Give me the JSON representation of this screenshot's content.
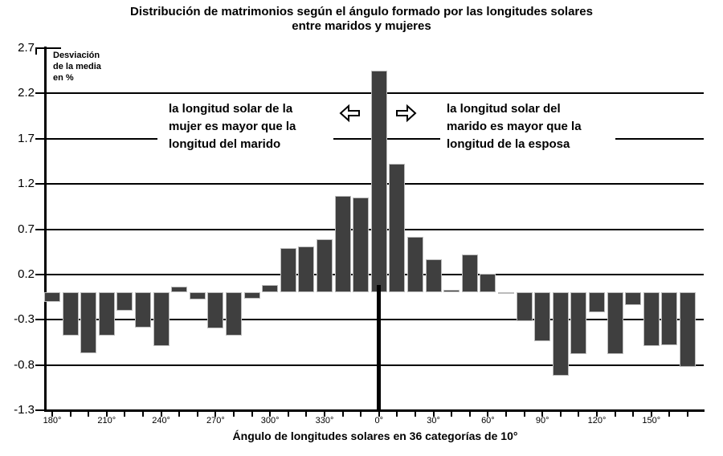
{
  "title": {
    "line1": "Distribución de matrimonios según el ángulo formado por las longitudes solares",
    "line2": "entre maridos y mujeres"
  },
  "y_axis": {
    "label_line1": "Desviación",
    "label_line2": "de la media",
    "label_line3": "en %",
    "tick_labels": [
      "2.7",
      "2.2",
      "1.7",
      "1.2",
      "0.7",
      "0.2",
      "-0.3",
      "-0.8",
      "-1.3"
    ],
    "tick_values": [
      2.7,
      2.2,
      1.7,
      1.2,
      0.7,
      0.2,
      -0.3,
      -0.8,
      -1.3
    ]
  },
  "x_axis": {
    "title": "Ángulo de longitudes solares en 36 categorías de 10°",
    "tick_labels": [
      "180°",
      "210°",
      "240°",
      "270°",
      "300°",
      "330°",
      "0°",
      "30°",
      "60°",
      "90°",
      "120°",
      "150°"
    ],
    "label_every_n_bars": 3
  },
  "annotations": {
    "left": {
      "line1": "la longitud solar de la",
      "line2": "mujer es mayor que la",
      "line3": "longitud del marido"
    },
    "right": {
      "line1": "la longitud solar del",
      "line2": "marido es mayor que la",
      "line3": "longitud de la esposa"
    }
  },
  "colors": {
    "bar": "#3f3f3f",
    "bar_border": "#bcbcbc",
    "axis": "#000000",
    "grid": "#000000",
    "background": "#ffffff"
  },
  "chart_data": {
    "type": "bar",
    "title": "Distribución de matrimonios según el ángulo formado por las longitudes solares entre maridos y mujeres",
    "xlabel": "Ángulo de longitudes solares en 36 categorías de 10°",
    "ylabel": "Desviación de la media en %",
    "ylim": [
      -1.3,
      2.7
    ],
    "gridline_values": [
      2.2,
      1.7,
      1.2,
      0.7,
      0.2,
      -0.3,
      -0.8
    ],
    "grid": true,
    "legend": false,
    "zero_marker": "bold vertical line below axis origin at 0°",
    "annotations": [
      "la longitud solar de la mujer es mayor que la longitud del marido",
      "la longitud solar del marido es mayor que la longitud de la esposa"
    ],
    "categories": [
      "180°",
      "190°",
      "200°",
      "210°",
      "220°",
      "230°",
      "240°",
      "250°",
      "260°",
      "270°",
      "280°",
      "290°",
      "300°",
      "310°",
      "320°",
      "330°",
      "340°",
      "350°",
      "0°",
      "10°",
      "20°",
      "30°",
      "40°",
      "50°",
      "60°",
      "70°",
      "80°",
      "90°",
      "100°",
      "110°",
      "120°",
      "130°",
      "140°",
      "150°",
      "160°",
      "170°"
    ],
    "values": [
      -0.1,
      -0.48,
      -0.67,
      -0.48,
      -0.2,
      -0.39,
      -0.59,
      0.07,
      -0.08,
      -0.4,
      -0.48,
      -0.07,
      0.08,
      0.49,
      0.51,
      0.59,
      1.07,
      1.05,
      2.45,
      1.42,
      0.62,
      0.37,
      0.03,
      0.42,
      0.21,
      0.0,
      -0.32,
      -0.54,
      -0.92,
      -0.68,
      -0.22,
      -0.68,
      -0.14,
      -0.59,
      -0.58,
      -0.82
    ]
  }
}
